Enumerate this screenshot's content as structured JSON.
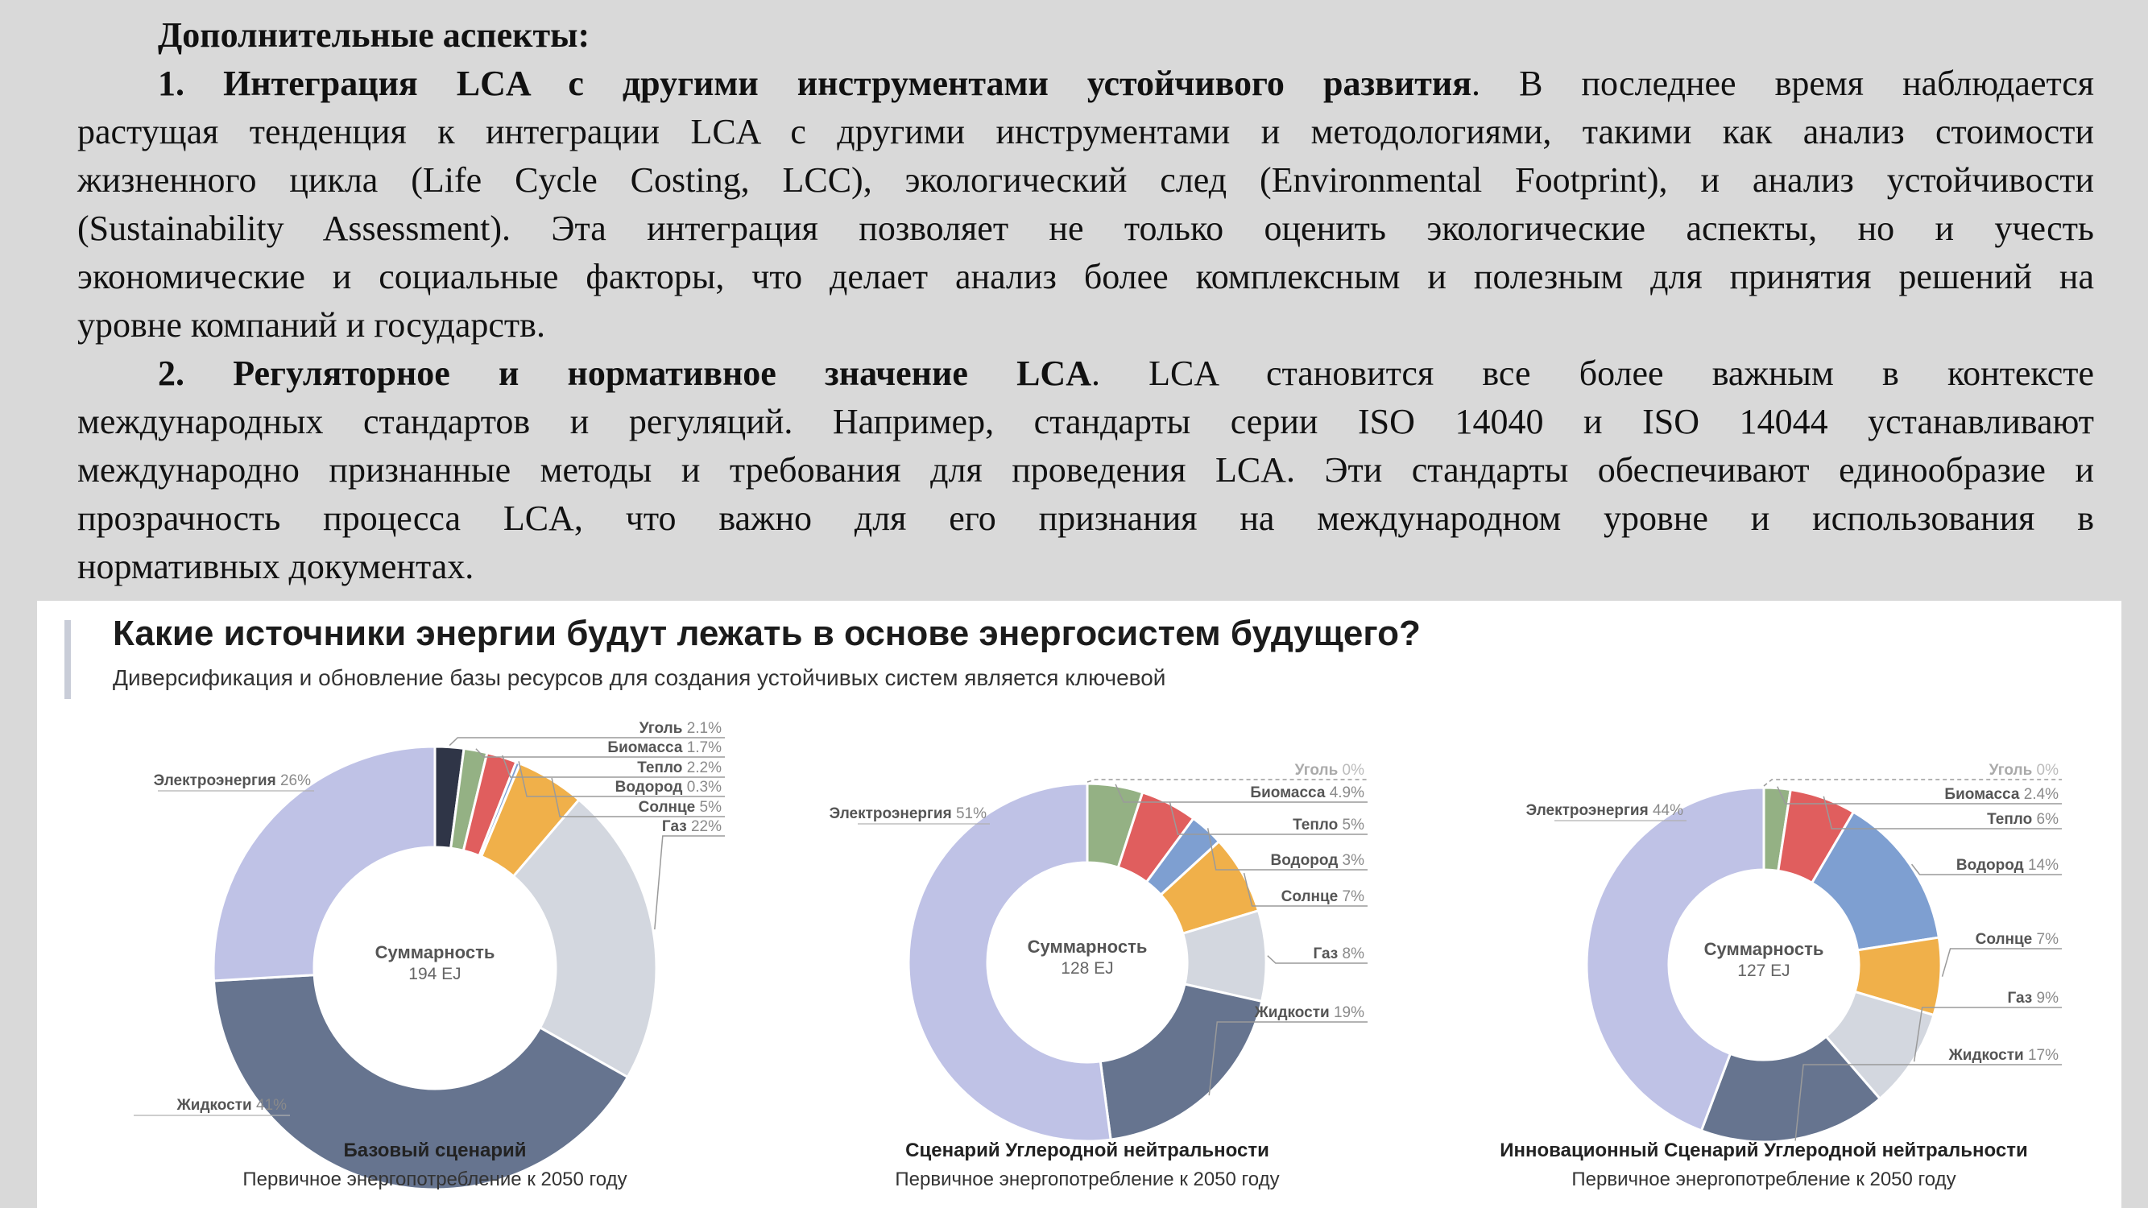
{
  "document": {
    "heading": "Дополнительные аспекты:",
    "p1": {
      "lead_num": "1. ",
      "lead_bold": "Интеграция LCA с другими инструментами устойчивого развития",
      "lines": [
        ". В последнее время наблюдается",
        "растущая тенденция к интеграции LCA с другими инструментами и методологиями, такими как анализ стоимости",
        "жизненного цикла (Life Cycle Costing, LCC), экологический след (Environmental Footprint), и анализ устойчивости",
        "(Sustainability Assessment). Эта интеграция позволяет не только оценить экологические аспекты, но и учесть",
        "экономические и социальные факторы, что делает анализ более комплексным и полезным для принятия решений на",
        "уровне компаний и государств."
      ]
    },
    "p2": {
      "lead_num": "2. ",
      "lead_bold": "Регуляторное и нормативное значение LCA",
      "lines": [
        ". LCA становится все более важным в контексте",
        "международных стандартов и регуляций. Например, стандарты серии ISO 14040 и ISO 14044 устанавливают",
        "международно признанные методы и требования для проведения LCA. Эти стандарты обеспечивают единообразие и",
        "прозрачность процесса LCA, что важно для его признания на международном уровне и использования в",
        "нормативных документах."
      ]
    }
  },
  "figure": {
    "title": "Какие источники энергии будут лежать в основе энергосистем будущего?",
    "subtitle": "Диверсификация и обновление базы ресурсов для создания устойчивых систем является ключевой",
    "colors": {
      "Уголь": "#2f3547",
      "Биомасса": "#94b184",
      "Тепло": "#e05e5e",
      "Водород": "#7e9fd1",
      "Солнце": "#f0b04a",
      "Газ": "#d3d7df",
      "Жидкости": "#66748f",
      "Электроэнергия": "#bfc2e6"
    }
  },
  "chart_data": [
    {
      "type": "pie",
      "title": "Базовый сценарий",
      "subtitle": "Первичное энергопотребление к 2050 году",
      "center_label": "Суммарность",
      "center_value": "194 EJ",
      "slices": [
        {
          "name": "Уголь",
          "value": 2.1,
          "label": "2.1%"
        },
        {
          "name": "Биомасса",
          "value": 1.7,
          "label": "1.7%"
        },
        {
          "name": "Тепло",
          "value": 2.2,
          "label": "2.2%"
        },
        {
          "name": "Водород",
          "value": 0.3,
          "label": "0.3%"
        },
        {
          "name": "Солнце",
          "value": 5,
          "label": "5%"
        },
        {
          "name": "Газ",
          "value": 22,
          "label": "22%"
        },
        {
          "name": "Жидкости",
          "value": 41,
          "label": "41%"
        },
        {
          "name": "Электроэнергия",
          "value": 26,
          "label": "26%"
        }
      ]
    },
    {
      "type": "pie",
      "title": "Сценарий Углеродной нейтральности",
      "subtitle": "Первичное энергопотребление к 2050 году",
      "center_label": "Суммарность",
      "center_value": "128 EJ",
      "slices": [
        {
          "name": "Уголь",
          "value": 0,
          "label": "0%"
        },
        {
          "name": "Биомасса",
          "value": 4.9,
          "label": "4.9%"
        },
        {
          "name": "Тепло",
          "value": 5,
          "label": "5%"
        },
        {
          "name": "Водород",
          "value": 3,
          "label": "3%"
        },
        {
          "name": "Солнце",
          "value": 7,
          "label": "7%"
        },
        {
          "name": "Газ",
          "value": 8,
          "label": "8%"
        },
        {
          "name": "Жидкости",
          "value": 19,
          "label": "19%"
        },
        {
          "name": "Электроэнергия",
          "value": 51,
          "label": "51%"
        }
      ]
    },
    {
      "type": "pie",
      "title": "Инновационный Сценарий Углеродной нейтральности",
      "subtitle": "Первичное энергопотребление к 2050 году",
      "center_label": "Суммарность",
      "center_value": "127 EJ",
      "slices": [
        {
          "name": "Уголь",
          "value": 0,
          "label": "0%"
        },
        {
          "name": "Биомасса",
          "value": 2.4,
          "label": "2.4%"
        },
        {
          "name": "Тепло",
          "value": 6,
          "label": "6%"
        },
        {
          "name": "Водород",
          "value": 14,
          "label": "14%"
        },
        {
          "name": "Солнце",
          "value": 7,
          "label": "7%"
        },
        {
          "name": "Газ",
          "value": 9,
          "label": "9%"
        },
        {
          "name": "Жидкости",
          "value": 17,
          "label": "17%"
        },
        {
          "name": "Электроэнергия",
          "value": 44,
          "label": "44%"
        }
      ]
    }
  ]
}
